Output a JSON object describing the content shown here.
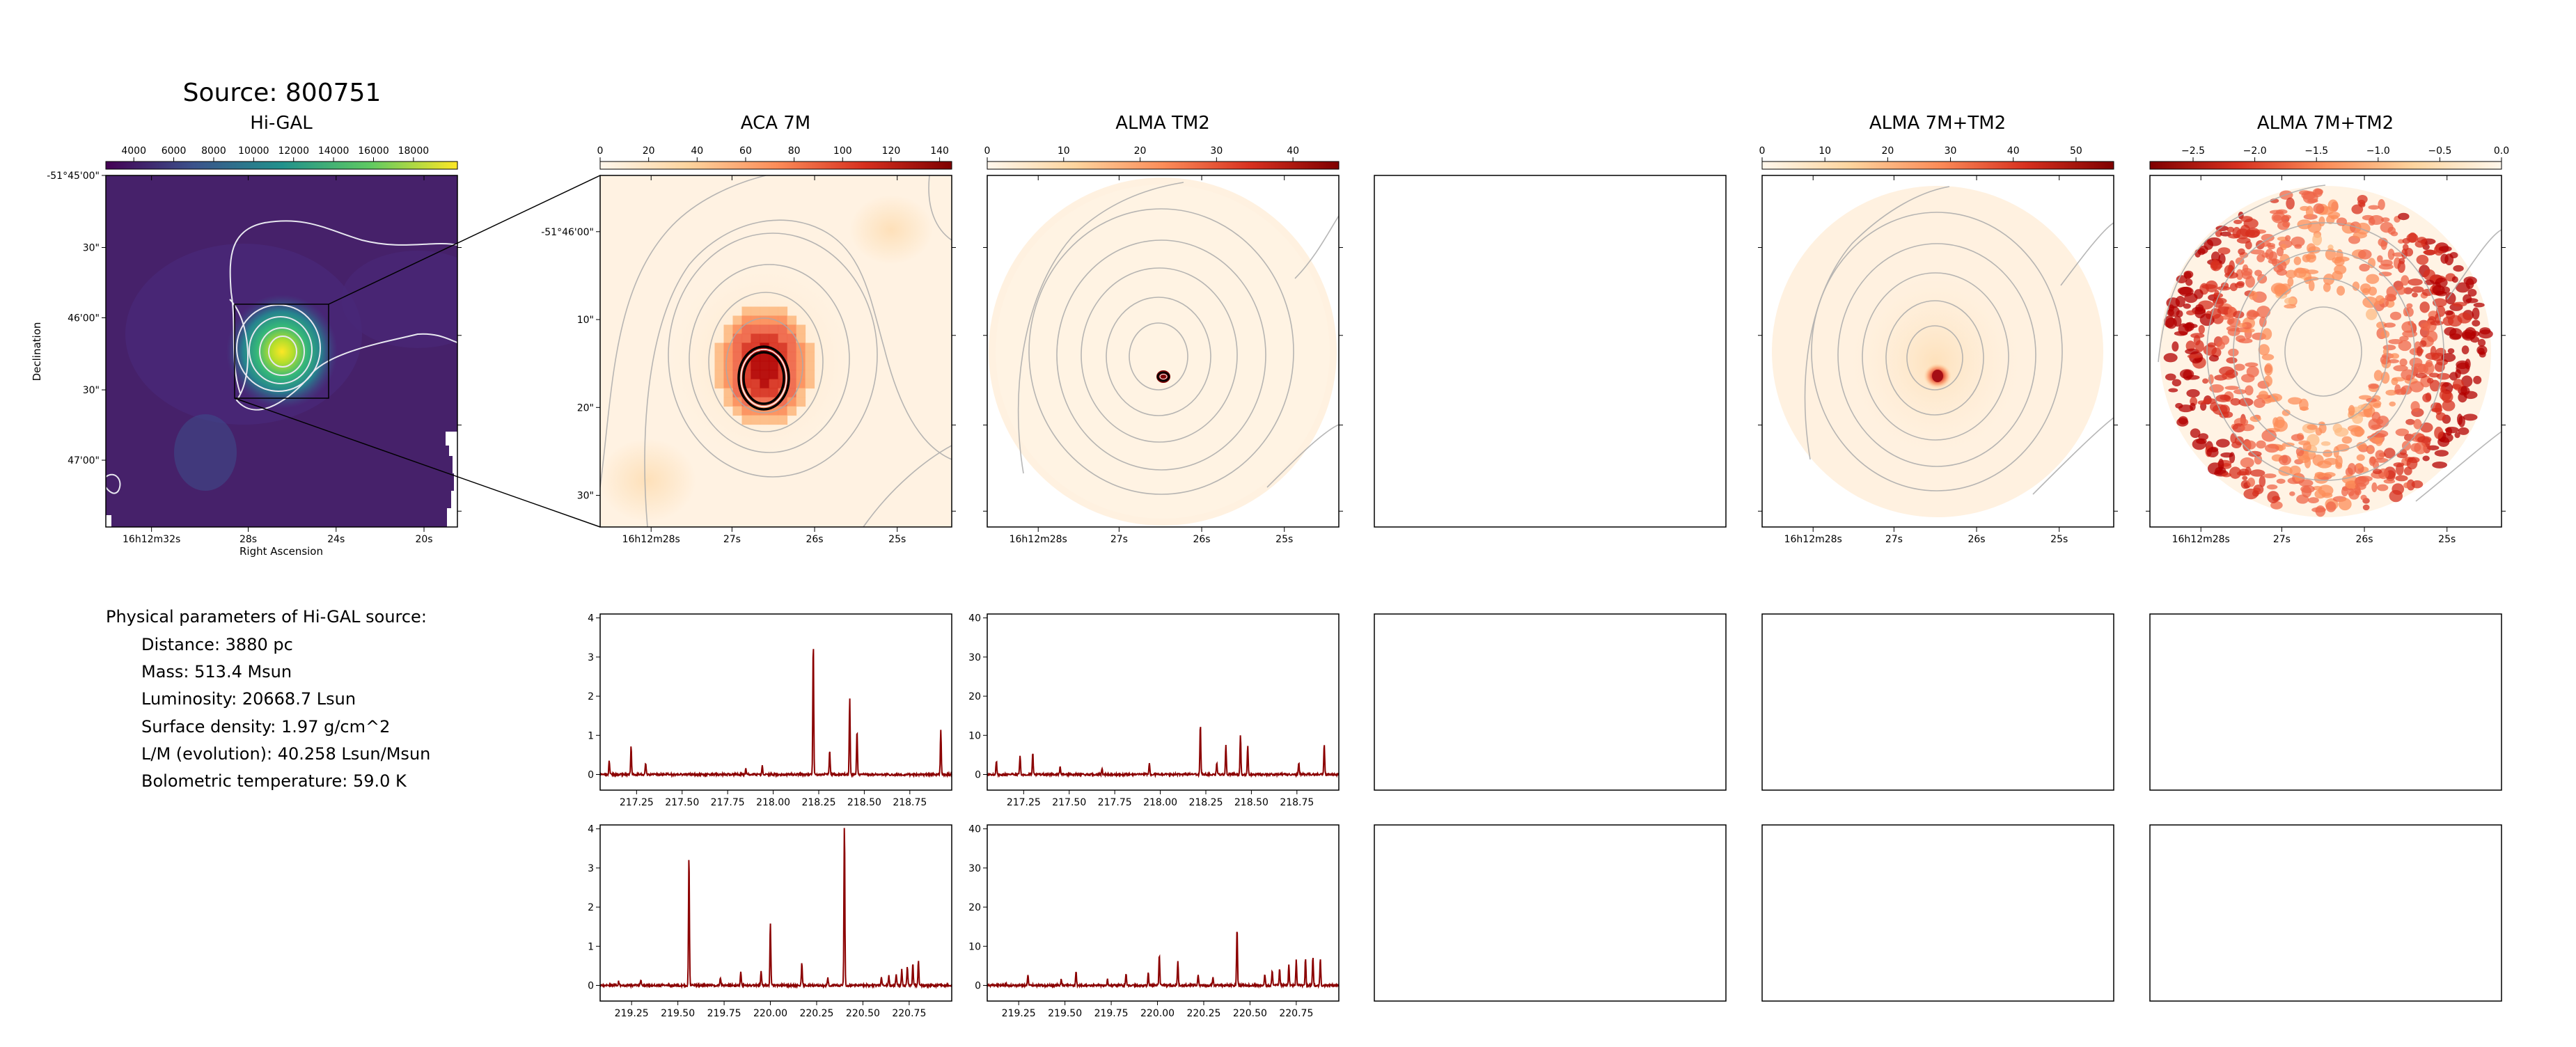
{
  "source_title": "Source: 800751",
  "chart_data": [
    {
      "type": "heatmap",
      "title": "Hi-GAL",
      "colormap": "viridis",
      "colorbar_ticks": [
        "4000",
        "6000",
        "8000",
        "10000",
        "12000",
        "14000",
        "16000",
        "18000"
      ],
      "colorbar_range": [
        2600,
        20200
      ],
      "xlabel": "Right Ascension",
      "ylabel": "Declination",
      "xticks": [
        "16h12m32s",
        "28s",
        "24s",
        "20s"
      ],
      "yticks": [
        "-51°45'00\"",
        "30\"",
        "46'00\"",
        "30\"",
        "47'00\""
      ]
    },
    {
      "type": "heatmap",
      "title": "ACA 7M",
      "colormap": "OrRd",
      "colorbar_ticks": [
        "0",
        "20",
        "40",
        "60",
        "80",
        "100",
        "120",
        "140"
      ],
      "colorbar_range": [
        0,
        145
      ],
      "xticks": [
        "16h12m28s",
        "27s",
        "26s",
        "25s"
      ],
      "yticks": [
        "-51°46'00\"",
        "10\"",
        "20\"",
        "30\""
      ]
    },
    {
      "type": "heatmap",
      "title": "ALMA TM2",
      "colormap": "OrRd",
      "colorbar_ticks": [
        "0",
        "10",
        "20",
        "30",
        "40"
      ],
      "colorbar_range": [
        0,
        46
      ],
      "xticks": [
        "16h12m28s",
        "27s",
        "26s",
        "25s"
      ]
    },
    {
      "type": "heatmap",
      "title": "ALMA 7M+TM2",
      "colormap": "OrRd",
      "colorbar_ticks": [
        "0",
        "10",
        "20",
        "30",
        "40",
        "50"
      ],
      "colorbar_range": [
        0,
        56
      ],
      "xticks": [
        "16h12m28s",
        "27s",
        "26s",
        "25s"
      ]
    },
    {
      "type": "heatmap",
      "title": "ALMA 7M+TM2",
      "colormap": "OrRd_r",
      "colorbar_ticks": [
        "−2.5",
        "−2.0",
        "−1.5",
        "−1.0",
        "−0.5",
        "0.0"
      ],
      "colorbar_range": [
        -2.85,
        0.0
      ],
      "xticks": [
        "16h12m28s",
        "27s",
        "26s",
        "25s"
      ]
    },
    {
      "type": "line",
      "name": "ACA 7M spectrum, lower band",
      "xlim": [
        217.05,
        218.98
      ],
      "ylim": [
        -0.4,
        4.1
      ],
      "xticks": [
        "217.25",
        "217.50",
        "217.75",
        "218.00",
        "218.25",
        "218.50",
        "218.75"
      ],
      "yticks": [
        "0",
        "1",
        "2",
        "3",
        "4"
      ],
      "peaks": [
        [
          217.1,
          0.35
        ],
        [
          217.22,
          0.72
        ],
        [
          217.3,
          0.3
        ],
        [
          217.85,
          0.15
        ],
        [
          217.94,
          0.22
        ],
        [
          218.22,
          3.4
        ],
        [
          218.31,
          0.6
        ],
        [
          218.42,
          1.95
        ],
        [
          218.46,
          1.15
        ],
        [
          218.92,
          1.15
        ]
      ]
    },
    {
      "type": "line",
      "name": "ALMA TM2 spectrum, lower band",
      "xlim": [
        217.05,
        218.98
      ],
      "ylim": [
        -4,
        41
      ],
      "xticks": [
        "217.25",
        "217.50",
        "217.75",
        "218.00",
        "218.25",
        "218.50",
        "218.75"
      ],
      "yticks": [
        "0",
        "10",
        "20",
        "30",
        "40"
      ],
      "peaks": [
        [
          217.1,
          3.5
        ],
        [
          217.23,
          5.0
        ],
        [
          217.3,
          5.5
        ],
        [
          217.45,
          2.0
        ],
        [
          217.68,
          1.5
        ],
        [
          217.94,
          2.8
        ],
        [
          218.22,
          13.0
        ],
        [
          218.31,
          3.0
        ],
        [
          218.36,
          7.5
        ],
        [
          218.44,
          10.3
        ],
        [
          218.48,
          7.5
        ],
        [
          218.76,
          3.0
        ],
        [
          218.9,
          8.0
        ]
      ]
    },
    {
      "type": "line",
      "name": "ACA 7M spectrum, upper band",
      "xlim": [
        219.08,
        220.98
      ],
      "ylim": [
        -0.4,
        4.1
      ],
      "xticks": [
        "219.25",
        "219.50",
        "219.75",
        "220.00",
        "220.25",
        "220.50",
        "220.75"
      ],
      "yticks": [
        "0",
        "1",
        "2",
        "3",
        "4"
      ],
      "peaks": [
        [
          219.18,
          0.1
        ],
        [
          219.3,
          0.15
        ],
        [
          219.56,
          3.35
        ],
        [
          219.73,
          0.2
        ],
        [
          219.84,
          0.35
        ],
        [
          219.95,
          0.35
        ],
        [
          220.0,
          1.6
        ],
        [
          220.17,
          0.6
        ],
        [
          220.31,
          0.2
        ],
        [
          220.4,
          4.1
        ],
        [
          220.6,
          0.2
        ],
        [
          220.64,
          0.25
        ],
        [
          220.68,
          0.3
        ],
        [
          220.71,
          0.4
        ],
        [
          220.74,
          0.5
        ],
        [
          220.77,
          0.55
        ],
        [
          220.8,
          0.65
        ]
      ]
    },
    {
      "type": "line",
      "name": "ALMA TM2 spectrum, upper band",
      "xlim": [
        219.08,
        220.98
      ],
      "ylim": [
        -4,
        41
      ],
      "xticks": [
        "219.25",
        "219.50",
        "219.75",
        "220.00",
        "220.25",
        "220.50",
        "220.75"
      ],
      "yticks": [
        "0",
        "10",
        "20",
        "30",
        "40"
      ],
      "peaks": [
        [
          219.18,
          0.5
        ],
        [
          219.3,
          2.5
        ],
        [
          219.48,
          1.5
        ],
        [
          219.56,
          3.5
        ],
        [
          219.73,
          1.5
        ],
        [
          219.83,
          3.0
        ],
        [
          219.95,
          3.5
        ],
        [
          220.01,
          8.0
        ],
        [
          220.11,
          6.5
        ],
        [
          220.22,
          2.5
        ],
        [
          220.3,
          2.0
        ],
        [
          220.43,
          15.0
        ],
        [
          220.58,
          3.0
        ],
        [
          220.62,
          4.0
        ],
        [
          220.66,
          4.5
        ],
        [
          220.71,
          5.5
        ],
        [
          220.75,
          6.5
        ],
        [
          220.8,
          7.0
        ],
        [
          220.84,
          7.5
        ],
        [
          220.88,
          7.0
        ]
      ]
    }
  ],
  "physical_parameters": {
    "heading": "Physical parameters of Hi-GAL source:",
    "lines": [
      "Distance: 3880 pc",
      "Mass: 513.4 Msun",
      "Luminosity: 20668.7 Lsun",
      "Surface density: 1.97 g/cm^2",
      "L/M (evolution): 40.258 Lsun/Msun",
      "Bolometric temperature: 59.0 K"
    ]
  }
}
